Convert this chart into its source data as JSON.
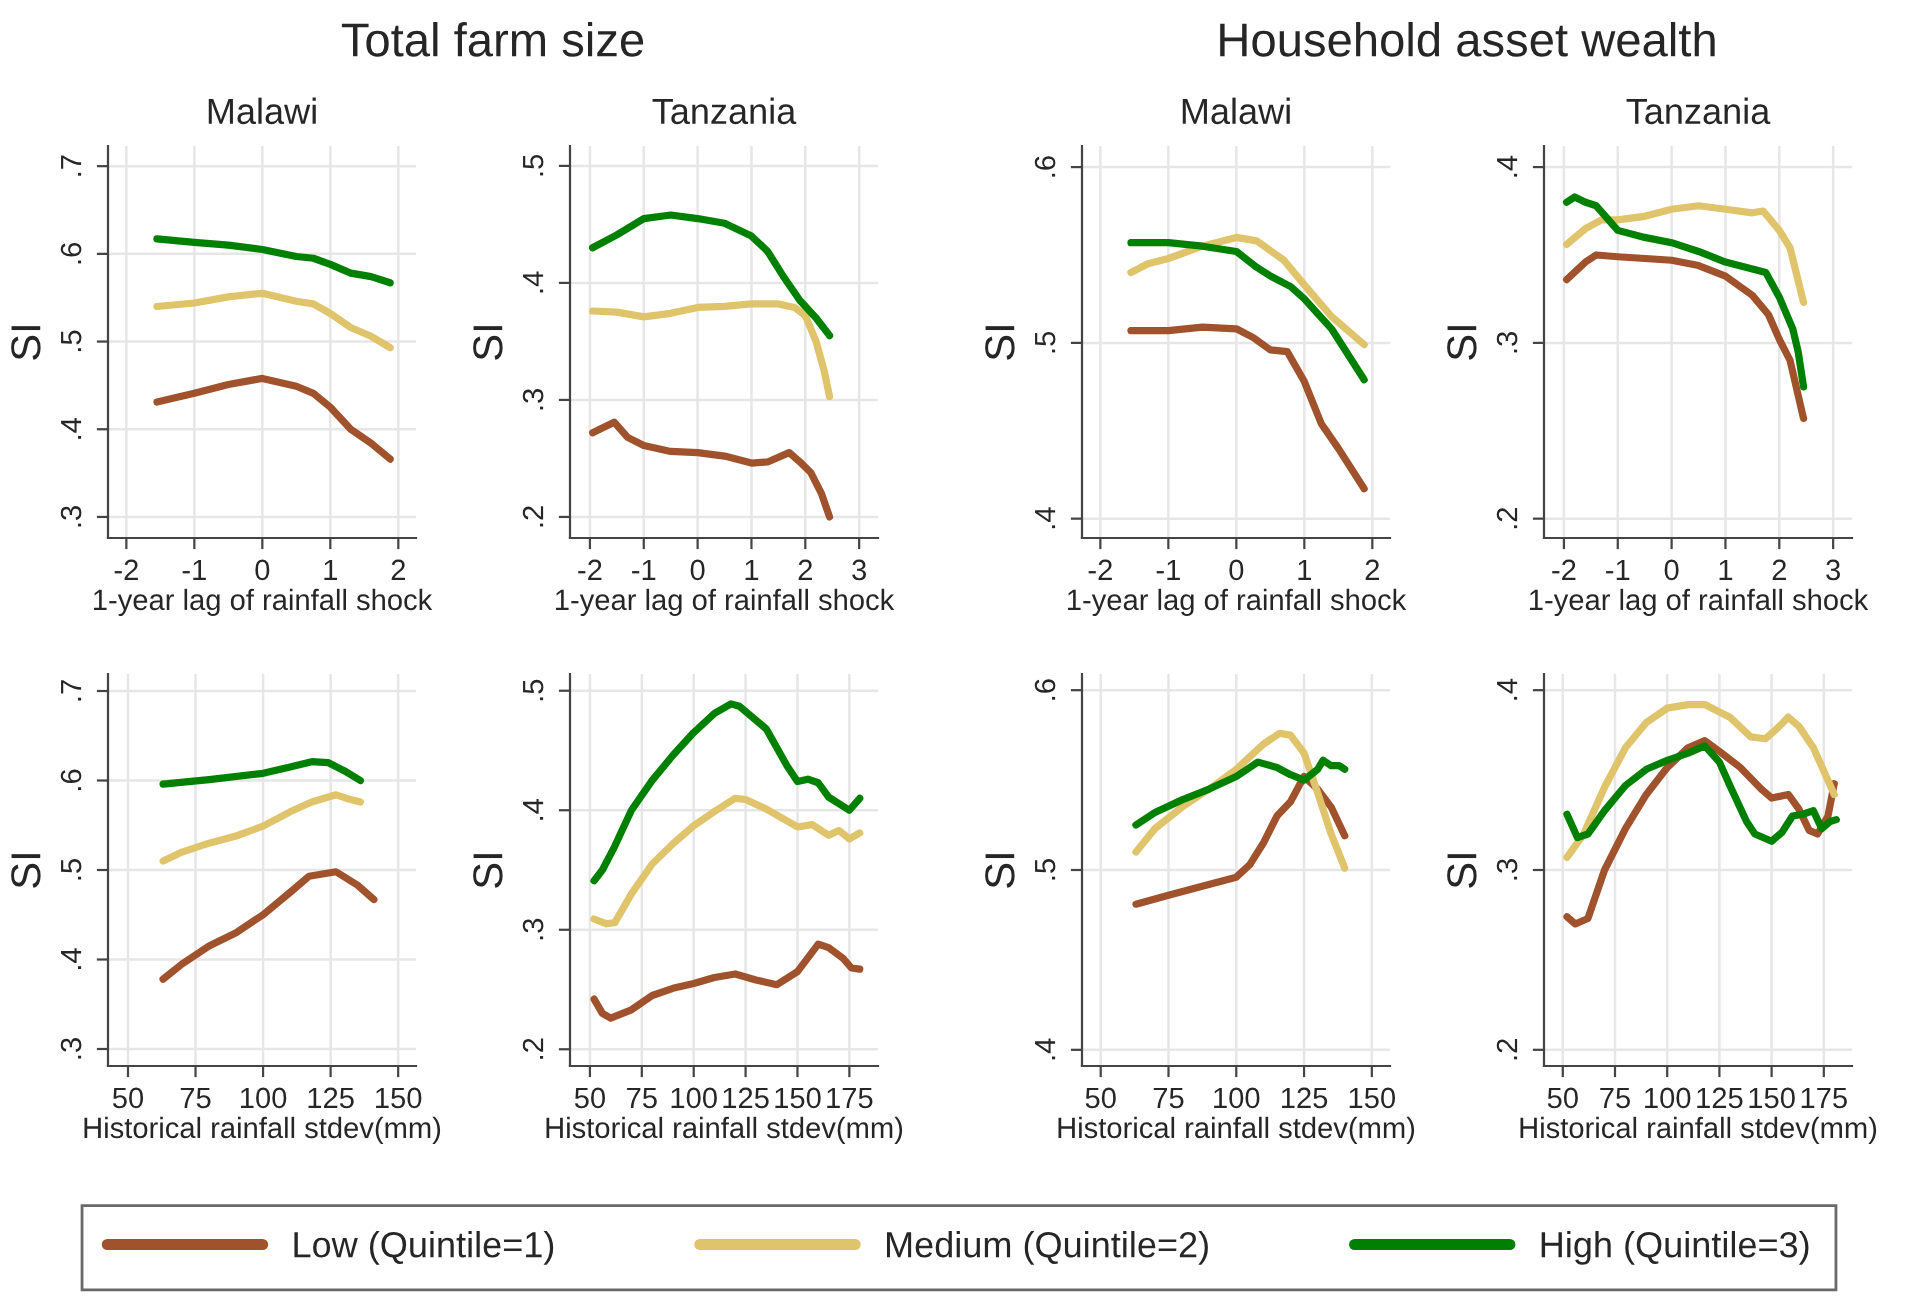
{
  "chart_data": [
    {
      "type": "line",
      "title": "Malawi",
      "annotations": [
        "Total farm size"
      ],
      "xlabel": "1-year lag of rainfall shock",
      "ylabel": "SI",
      "xlim": [
        -2.27,
        2.26
      ],
      "xticks": [
        -2,
        -1,
        0,
        1,
        2
      ],
      "ylim": [
        0.276,
        0.723
      ],
      "yticks": [
        {
          "value": 0.3,
          "label": ".3"
        },
        {
          "value": 0.4,
          "label": ".4"
        },
        {
          "value": 0.5,
          "label": ".5"
        },
        {
          "value": 0.6,
          "label": ".6"
        },
        {
          "value": 0.7,
          "label": ".7"
        }
      ],
      "grid": true,
      "legend": "bottom",
      "series": [
        {
          "name": "Low (Quintile=1)",
          "color": "#a0522d",
          "x": [
            -1.55,
            -1,
            -0.5,
            0,
            0.5,
            0.75,
            1,
            1.3,
            1.6,
            1.88
          ],
          "values": [
            0.431,
            0.441,
            0.451,
            0.458,
            0.449,
            0.441,
            0.425,
            0.4,
            0.384,
            0.366
          ]
        },
        {
          "name": "Medium (Quintile=2)",
          "color": "#e0c46c",
          "x": [
            -1.55,
            -1,
            -0.5,
            0,
            0.5,
            0.75,
            1,
            1.3,
            1.6,
            1.88
          ],
          "values": [
            0.54,
            0.544,
            0.551,
            0.555,
            0.546,
            0.543,
            0.532,
            0.516,
            0.506,
            0.493
          ]
        },
        {
          "name": "High (Quintile=3)",
          "color": "#008000",
          "x": [
            -1.55,
            -1,
            -0.5,
            0,
            0.5,
            0.75,
            1,
            1.3,
            1.6,
            1.88
          ],
          "values": [
            0.617,
            0.613,
            0.61,
            0.605,
            0.597,
            0.595,
            0.588,
            0.578,
            0.574,
            0.567
          ]
        }
      ]
    },
    {
      "type": "line",
      "title": "Tanzania",
      "xlabel": "1-year lag of rainfall shock",
      "ylabel": "SI",
      "xlim": [
        -2.37,
        3.35
      ],
      "xticks": [
        -2,
        -1,
        0,
        1,
        2,
        3
      ],
      "ylim": [
        0.182,
        0.517
      ],
      "yticks": [
        {
          "value": 0.2,
          "label": ".2"
        },
        {
          "value": 0.3,
          "label": ".3"
        },
        {
          "value": 0.4,
          "label": ".4"
        },
        {
          "value": 0.5,
          "label": ".5"
        }
      ],
      "grid": true,
      "series": [
        {
          "color": "#a0522d",
          "x": [
            -1.95,
            -1.55,
            -1.3,
            -1,
            -0.5,
            0,
            0.5,
            1,
            1.3,
            1.7,
            1.9,
            2.1,
            2.3,
            2.45
          ],
          "values": [
            0.272,
            0.281,
            0.268,
            0.261,
            0.256,
            0.255,
            0.252,
            0.246,
            0.247,
            0.255,
            0.247,
            0.238,
            0.22,
            0.2
          ]
        },
        {
          "color": "#e0c46c",
          "x": [
            -1.95,
            -1.5,
            -1,
            -0.5,
            0,
            0.5,
            1,
            1.5,
            1.8,
            2,
            2.2,
            2.35,
            2.45
          ],
          "values": [
            0.376,
            0.375,
            0.371,
            0.374,
            0.379,
            0.38,
            0.382,
            0.382,
            0.379,
            0.372,
            0.35,
            0.325,
            0.303
          ]
        },
        {
          "color": "#008000",
          "x": [
            -1.95,
            -1.5,
            -1,
            -0.5,
            0,
            0.5,
            1,
            1.3,
            1.6,
            1.9,
            2.2,
            2.45
          ],
          "values": [
            0.43,
            0.441,
            0.455,
            0.458,
            0.455,
            0.451,
            0.44,
            0.427,
            0.405,
            0.385,
            0.37,
            0.355
          ]
        }
      ]
    },
    {
      "type": "line",
      "title": "Malawi",
      "annotations": [
        "Household asset wealth"
      ],
      "xlabel": "1-year lag of rainfall shock",
      "ylabel": "SI",
      "xlim": [
        -2.27,
        2.26
      ],
      "xticks": [
        -2,
        -1,
        0,
        1,
        2
      ],
      "ylim": [
        0.389,
        0.612
      ],
      "yticks": [
        {
          "value": 0.4,
          "label": ".4"
        },
        {
          "value": 0.5,
          "label": ".5"
        },
        {
          "value": 0.6,
          "label": ".6"
        }
      ],
      "grid": true,
      "series": [
        {
          "color": "#a0522d",
          "x": [
            -1.55,
            -1,
            -0.5,
            0,
            0.25,
            0.5,
            0.75,
            1,
            1.25,
            1.5,
            1.88
          ],
          "values": [
            0.507,
            0.507,
            0.509,
            0.508,
            0.503,
            0.496,
            0.495,
            0.478,
            0.454,
            0.44,
            0.417
          ]
        },
        {
          "color": "#e0c46c",
          "x": [
            -1.55,
            -1.3,
            -1,
            -0.5,
            0,
            0.3,
            0.7,
            1,
            1.4,
            1.88
          ],
          "values": [
            0.54,
            0.545,
            0.548,
            0.555,
            0.56,
            0.558,
            0.547,
            0.533,
            0.515,
            0.499
          ]
        },
        {
          "color": "#008000",
          "x": [
            -1.55,
            -1,
            -0.5,
            0,
            0.3,
            0.5,
            0.8,
            1,
            1.4,
            1.88
          ],
          "values": [
            0.557,
            0.557,
            0.555,
            0.552,
            0.543,
            0.538,
            0.532,
            0.525,
            0.508,
            0.479
          ]
        }
      ]
    },
    {
      "type": "line",
      "title": "Tanzania",
      "xlabel": "1-year lag of rainfall shock",
      "ylabel": "SI",
      "xlim": [
        -2.37,
        3.35
      ],
      "xticks": [
        -2,
        -1,
        0,
        1,
        2,
        3
      ],
      "ylim": [
        0.189,
        0.412
      ],
      "yticks": [
        {
          "value": 0.2,
          "label": ".2"
        },
        {
          "value": 0.3,
          "label": ".3"
        },
        {
          "value": 0.4,
          "label": ".4"
        }
      ],
      "grid": true,
      "series": [
        {
          "color": "#a0522d",
          "x": [
            -1.95,
            -1.6,
            -1.4,
            -1,
            0,
            0.5,
            1,
            1.5,
            1.8,
            2,
            2.2,
            2.45
          ],
          "values": [
            0.336,
            0.346,
            0.35,
            0.349,
            0.347,
            0.344,
            0.338,
            0.327,
            0.316,
            0.302,
            0.29,
            0.257
          ]
        },
        {
          "color": "#e0c46c",
          "x": [
            -1.95,
            -1.6,
            -1.3,
            -1,
            -0.5,
            0,
            0.5,
            1,
            1.5,
            1.7,
            2,
            2.2,
            2.45
          ],
          "values": [
            0.356,
            0.365,
            0.37,
            0.37,
            0.372,
            0.376,
            0.378,
            0.376,
            0.374,
            0.375,
            0.364,
            0.354,
            0.323
          ]
        },
        {
          "color": "#008000",
          "x": [
            -1.95,
            -1.8,
            -1.6,
            -1.4,
            -1.2,
            -1,
            -0.5,
            0,
            0.5,
            1,
            1.5,
            1.75,
            2,
            2.25,
            2.35,
            2.45
          ],
          "values": [
            0.38,
            0.383,
            0.38,
            0.378,
            0.371,
            0.364,
            0.36,
            0.357,
            0.352,
            0.346,
            0.342,
            0.34,
            0.326,
            0.308,
            0.295,
            0.275
          ]
        }
      ]
    },
    {
      "type": "line",
      "xlabel": "Historical rainfall stdev(mm)",
      "ylabel": "SI",
      "xlim": [
        42.6,
        156.6
      ],
      "xticks": [
        50,
        75,
        100,
        125,
        150
      ],
      "ylim": [
        0.281,
        0.719
      ],
      "yticks": [
        {
          "value": 0.3,
          "label": ".3"
        },
        {
          "value": 0.4,
          "label": ".4"
        },
        {
          "value": 0.5,
          "label": ".5"
        },
        {
          "value": 0.6,
          "label": ".6"
        },
        {
          "value": 0.7,
          "label": ".7"
        }
      ],
      "grid": true,
      "series": [
        {
          "color": "#a0522d",
          "x": [
            63,
            70,
            80,
            90,
            100,
            110,
            117,
            127,
            135,
            141
          ],
          "values": [
            0.378,
            0.395,
            0.415,
            0.43,
            0.45,
            0.475,
            0.493,
            0.498,
            0.483,
            0.467
          ]
        },
        {
          "color": "#e0c46c",
          "x": [
            63,
            70,
            80,
            90,
            100,
            110,
            118,
            127,
            131,
            136
          ],
          "values": [
            0.51,
            0.52,
            0.53,
            0.538,
            0.549,
            0.565,
            0.576,
            0.584,
            0.58,
            0.576
          ]
        },
        {
          "color": "#008000",
          "x": [
            63,
            80,
            100,
            110,
            118,
            124,
            130,
            136
          ],
          "values": [
            0.596,
            0.601,
            0.608,
            0.615,
            0.621,
            0.62,
            0.611,
            0.6
          ]
        }
      ]
    },
    {
      "type": "line",
      "xlabel": "Historical rainfall stdev(mm)",
      "ylabel": "SI",
      "xlim": [
        40.4,
        188.8
      ],
      "xticks": [
        50,
        75,
        100,
        125,
        150,
        175
      ],
      "ylim": [
        0.186,
        0.514
      ],
      "yticks": [
        {
          "value": 0.2,
          "label": ".2"
        },
        {
          "value": 0.3,
          "label": ".3"
        },
        {
          "value": 0.4,
          "label": ".4"
        },
        {
          "value": 0.5,
          "label": ".5"
        }
      ],
      "grid": true,
      "series": [
        {
          "color": "#a0522d",
          "x": [
            52,
            56,
            60,
            70,
            80,
            90,
            100,
            110,
            120,
            130,
            140,
            150,
            160,
            165,
            172,
            176,
            180
          ],
          "values": [
            0.242,
            0.23,
            0.226,
            0.233,
            0.245,
            0.251,
            0.255,
            0.26,
            0.263,
            0.258,
            0.254,
            0.265,
            0.288,
            0.285,
            0.276,
            0.268,
            0.267
          ]
        },
        {
          "color": "#e0c46c",
          "x": [
            52,
            58,
            62,
            70,
            80,
            90,
            100,
            110,
            120,
            125,
            135,
            150,
            157,
            165,
            170,
            175,
            180
          ],
          "values": [
            0.309,
            0.305,
            0.306,
            0.33,
            0.355,
            0.372,
            0.387,
            0.399,
            0.41,
            0.409,
            0.401,
            0.386,
            0.388,
            0.379,
            0.383,
            0.376,
            0.381
          ]
        },
        {
          "color": "#008000",
          "x": [
            52,
            56,
            62,
            70,
            80,
            90,
            100,
            110,
            118,
            122,
            135,
            145,
            150,
            155,
            160,
            165,
            175,
            180
          ],
          "values": [
            0.341,
            0.35,
            0.37,
            0.4,
            0.425,
            0.446,
            0.465,
            0.481,
            0.489,
            0.487,
            0.468,
            0.437,
            0.424,
            0.426,
            0.423,
            0.411,
            0.4,
            0.41
          ]
        }
      ]
    },
    {
      "type": "line",
      "xlabel": "Historical rainfall stdev(mm)",
      "ylabel": "SI",
      "xlim": [
        43.1,
        156.7
      ],
      "xticks": [
        50,
        75,
        100,
        125,
        150
      ],
      "ylim": [
        0.391,
        0.609
      ],
      "yticks": [
        {
          "value": 0.4,
          "label": ".4"
        },
        {
          "value": 0.5,
          "label": ".5"
        },
        {
          "value": 0.6,
          "label": ".6"
        }
      ],
      "grid": true,
      "series": [
        {
          "color": "#a0522d",
          "x": [
            63,
            75,
            85,
            100,
            105,
            110,
            115,
            120,
            125,
            130,
            135,
            140
          ],
          "values": [
            0.481,
            0.486,
            0.49,
            0.496,
            0.503,
            0.515,
            0.53,
            0.538,
            0.552,
            0.545,
            0.535,
            0.519
          ]
        },
        {
          "color": "#e0c46c",
          "x": [
            63,
            70,
            80,
            90,
            100,
            110,
            116,
            120,
            125,
            130,
            135,
            140
          ],
          "values": [
            0.51,
            0.523,
            0.535,
            0.545,
            0.556,
            0.57,
            0.576,
            0.575,
            0.565,
            0.543,
            0.52,
            0.501
          ]
        },
        {
          "color": "#008000",
          "x": [
            63,
            70,
            80,
            90,
            100,
            108,
            115,
            120,
            125,
            130,
            132,
            135,
            138,
            140
          ],
          "values": [
            0.525,
            0.532,
            0.539,
            0.545,
            0.552,
            0.56,
            0.557,
            0.553,
            0.55,
            0.556,
            0.561,
            0.558,
            0.558,
            0.556
          ]
        }
      ]
    },
    {
      "type": "line",
      "xlabel": "Historical rainfall stdev(mm)",
      "ylabel": "SI",
      "xlim": [
        41,
        188.5
      ],
      "xticks": [
        50,
        75,
        100,
        125,
        150,
        175
      ],
      "ylim": [
        0.191,
        0.409
      ],
      "yticks": [
        {
          "value": 0.2,
          "label": ".2"
        },
        {
          "value": 0.3,
          "label": ".3"
        },
        {
          "value": 0.4,
          "label": ".4"
        }
      ],
      "grid": true,
      "series": [
        {
          "color": "#a0522d",
          "x": [
            52,
            56,
            62,
            70,
            80,
            90,
            100,
            110,
            118,
            125,
            135,
            145,
            150,
            158,
            163,
            168,
            172,
            177,
            180
          ],
          "values": [
            0.274,
            0.27,
            0.273,
            0.3,
            0.323,
            0.342,
            0.357,
            0.368,
            0.372,
            0.366,
            0.357,
            0.345,
            0.34,
            0.342,
            0.334,
            0.322,
            0.32,
            0.33,
            0.348
          ]
        },
        {
          "color": "#e0c46c",
          "x": [
            52,
            60,
            70,
            80,
            90,
            100,
            110,
            118,
            130,
            140,
            147,
            152,
            158,
            163,
            170,
            180
          ],
          "values": [
            0.307,
            0.32,
            0.346,
            0.368,
            0.382,
            0.39,
            0.392,
            0.392,
            0.385,
            0.374,
            0.373,
            0.378,
            0.385,
            0.38,
            0.368,
            0.342
          ]
        },
        {
          "color": "#008000",
          "x": [
            52,
            57,
            62,
            70,
            80,
            90,
            100,
            110,
            118,
            125,
            130,
            138,
            142,
            150,
            155,
            160,
            165,
            170,
            174,
            178,
            181
          ],
          "values": [
            0.331,
            0.318,
            0.32,
            0.333,
            0.347,
            0.356,
            0.361,
            0.365,
            0.369,
            0.36,
            0.347,
            0.327,
            0.32,
            0.316,
            0.321,
            0.33,
            0.331,
            0.333,
            0.323,
            0.327,
            0.328
          ]
        }
      ]
    }
  ]
}
